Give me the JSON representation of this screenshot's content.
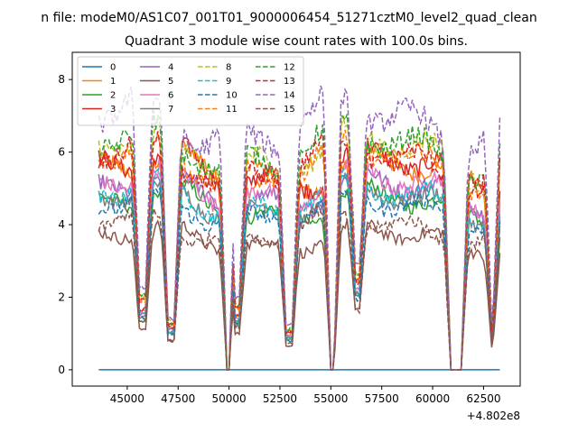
{
  "figure": {
    "suptitle": "n file: modeM0/AS1C07_001T01_9000006454_51271cztM0_level2_quad_clean",
    "title": "Quadrant 3 module wise count rates with 100.0s bins."
  },
  "chart_data": {
    "type": "line",
    "title": "Quadrant 3 module wise count rates with 100.0s bins.",
    "xlabel": "",
    "ylabel": "",
    "x_offset_label": "+4.802e8",
    "xlim": [
      42300,
      64300
    ],
    "ylim": [
      -0.45,
      8.75
    ],
    "xticks": [
      45000,
      47500,
      50000,
      52500,
      55000,
      57500,
      60000,
      62500
    ],
    "xtick_labels": [
      "45000",
      "47500",
      "50000",
      "52500",
      "55000",
      "57500",
      "60000",
      "62500"
    ],
    "yticks": [
      0,
      2,
      4,
      6,
      8
    ],
    "ytick_labels": [
      "0",
      "2",
      "4",
      "6",
      "8"
    ],
    "grid": false,
    "legend_placement": "top-left",
    "x_range": [
      43600,
      63300
    ],
    "series": [
      {
        "name": "0",
        "color": "#1f77b4",
        "dash": "solid",
        "level": 0.0
      },
      {
        "name": "1",
        "color": "#ff7f0e",
        "dash": "solid",
        "level": 5.4
      },
      {
        "name": "2",
        "color": "#2ca02c",
        "dash": "solid",
        "level": 4.5
      },
      {
        "name": "3",
        "color": "#d62728",
        "dash": "solid",
        "level": 5.5
      },
      {
        "name": "4",
        "color": "#9467bd",
        "dash": "solid",
        "level": 4.9
      },
      {
        "name": "5",
        "color": "#8c564b",
        "dash": "solid",
        "level": 3.6
      },
      {
        "name": "6",
        "color": "#e377c2",
        "dash": "solid",
        "level": 5.0
      },
      {
        "name": "7",
        "color": "#7f7f7f",
        "dash": "solid",
        "level": 4.6
      },
      {
        "name": "8",
        "color": "#bcbd22",
        "dash": "dashed",
        "level": 6.0
      },
      {
        "name": "9",
        "color": "#17becf",
        "dash": "dashed",
        "level": 4.7
      },
      {
        "name": "10",
        "color": "#1f77b4",
        "dash": "dashed",
        "level": 4.4
      },
      {
        "name": "11",
        "color": "#ff7f0e",
        "dash": "dashed",
        "level": 5.7
      },
      {
        "name": "12",
        "color": "#2ca02c",
        "dash": "dashed",
        "level": 6.1
      },
      {
        "name": "13",
        "color": "#d62728",
        "dash": "dashed",
        "level": 5.7
      },
      {
        "name": "14",
        "color": "#9467bd",
        "dash": "dashed",
        "level": 6.8
      },
      {
        "name": "15",
        "color": "#8c564b",
        "dash": "dashed",
        "level": 3.9
      }
    ],
    "saa_gaps": [
      [
        45600,
        45900,
        0.3
      ],
      [
        47000,
        47300,
        0.2
      ],
      [
        49900,
        50000,
        0.0
      ],
      [
        50300,
        50500,
        0.3
      ],
      [
        52800,
        53100,
        0.2
      ],
      [
        55000,
        55150,
        0.0
      ],
      [
        56200,
        56400,
        0.4
      ],
      [
        60900,
        61400,
        0.0
      ],
      [
        62900,
        62950,
        0.2
      ]
    ]
  }
}
